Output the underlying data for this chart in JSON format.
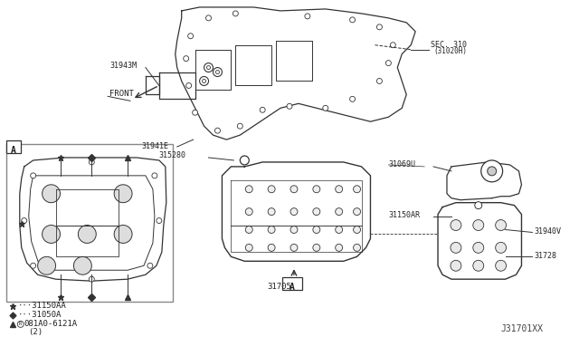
{
  "title": "",
  "background_color": "#ffffff",
  "diagram_id": "J31701XX",
  "labels": {
    "sec_310": "SEC. 310\n(31020H)",
    "31943M": "31943M",
    "31941E": "31941E",
    "31528O": "315280",
    "31705": "31705",
    "31069U": "31069U",
    "31150AR": "31150AR",
    "31940V": "31940V",
    "31728": "31728",
    "31150AA": "★·· 31150AA",
    "31050A": "◆·· 31050A",
    "bolt": "▲···Ⓑ081A0-6121A\n    (2)",
    "front": "FRONT",
    "view_A": "A"
  },
  "text_color": "#222222",
  "line_color": "#333333",
  "font_size_label": 7,
  "font_size_legend": 6.5,
  "font_size_diagram_id": 7
}
